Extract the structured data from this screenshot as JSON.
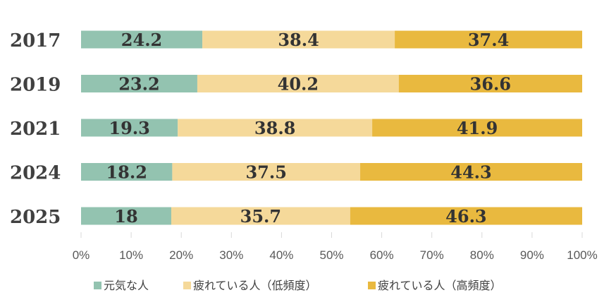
{
  "chart_data": {
    "type": "bar",
    "orientation": "horizontal",
    "stacked": "percent",
    "categories": [
      "2017",
      "2019",
      "2021",
      "2024",
      "2025"
    ],
    "series": [
      {
        "name": "元気な人",
        "color": "#93c3b0",
        "values": [
          24.2,
          23.2,
          19.3,
          18.2,
          18
        ],
        "labels": [
          "24.2",
          "23.2",
          "19.3",
          "18.2",
          "18"
        ]
      },
      {
        "name": "疲れている人（低頻度）",
        "color": "#f5d99a",
        "values": [
          38.4,
          40.2,
          38.8,
          37.5,
          35.7
        ],
        "labels": [
          "38.4",
          "40.2",
          "38.8",
          "37.5",
          "35.7"
        ]
      },
      {
        "name": "疲れている人（高頻度）",
        "color": "#e9b93f",
        "values": [
          37.4,
          36.6,
          41.9,
          44.3,
          46.3
        ],
        "labels": [
          "37.4",
          "36.6",
          "41.9",
          "44.3",
          "46.3"
        ]
      }
    ],
    "xlim": [
      0,
      100
    ],
    "xticks": [
      "0%",
      "10%",
      "20%",
      "30%",
      "40%",
      "50%",
      "60%",
      "70%",
      "80%",
      "90%",
      "100%"
    ],
    "grid": false,
    "legend_position": "bottom"
  }
}
